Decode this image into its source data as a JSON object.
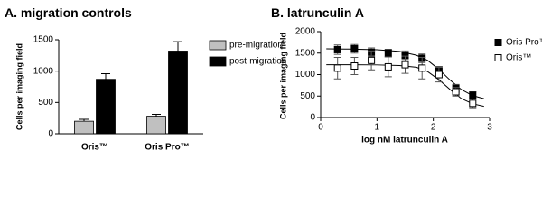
{
  "chart_data": [
    {
      "type": "bar",
      "title": "A. migration controls",
      "y_label": "Cells per imaging field",
      "categories": [
        "Oris™",
        "Oris Pro™"
      ],
      "series": [
        {
          "name": "pre-migration",
          "color": "#c0c0c0",
          "values": [
            200,
            280
          ],
          "errors": [
            30,
            30
          ]
        },
        {
          "name": "post-migration",
          "color": "#000000",
          "values": [
            870,
            1320
          ],
          "errors": [
            90,
            150
          ]
        }
      ],
      "ylim": [
        0,
        1500
      ],
      "yticks": [
        0,
        500,
        1000,
        1500
      ],
      "legend": "top-right"
    },
    {
      "type": "scatter",
      "title": "B. latrunculin A",
      "x_label": "log nM latrunculin A",
      "series": [
        {
          "name": "Oris Pro™",
          "color": "#000000",
          "marker": "filled-square",
          "x": [
            0.3,
            0.6,
            0.9,
            1.2,
            1.5,
            1.8,
            2.1,
            2.4,
            2.7
          ],
          "values": [
            1580,
            1600,
            1520,
            1500,
            1450,
            1380,
            1080,
            680,
            520
          ],
          "errors": [
            110,
            100,
            100,
            90,
            100,
            100,
            110,
            90,
            80
          ],
          "fit": {
            "x": [
              0.1,
              0.5,
              1.0,
              1.4,
              1.7,
              1.9,
              2.1,
              2.3,
              2.5,
              2.7,
              2.9
            ],
            "values": [
              1600,
              1595,
              1580,
              1540,
              1450,
              1330,
              1120,
              870,
              650,
              510,
              440
            ]
          }
        },
        {
          "name": "Oris™",
          "color": "#000000",
          "marker": "open-square",
          "x": [
            0.3,
            0.6,
            0.9,
            1.2,
            1.5,
            1.8,
            2.1,
            2.4,
            2.7
          ],
          "values": [
            1150,
            1200,
            1330,
            1180,
            1230,
            1150,
            1000,
            600,
            330
          ],
          "errors": [
            250,
            200,
            220,
            230,
            200,
            250,
            170,
            100,
            100
          ],
          "fit": {
            "x": [
              0.1,
              0.5,
              1.0,
              1.4,
              1.7,
              1.9,
              2.1,
              2.3,
              2.5,
              2.7,
              2.9
            ],
            "values": [
              1230,
              1230,
              1225,
              1210,
              1170,
              1070,
              880,
              650,
              440,
              320,
              260
            ]
          }
        }
      ],
      "xlim": [
        0,
        3
      ],
      "xticks": [
        0,
        1,
        2,
        3
      ],
      "ylim": [
        0,
        2000
      ],
      "yticks": [
        0,
        500,
        1000,
        1500,
        2000
      ],
      "legend": "right"
    }
  ]
}
